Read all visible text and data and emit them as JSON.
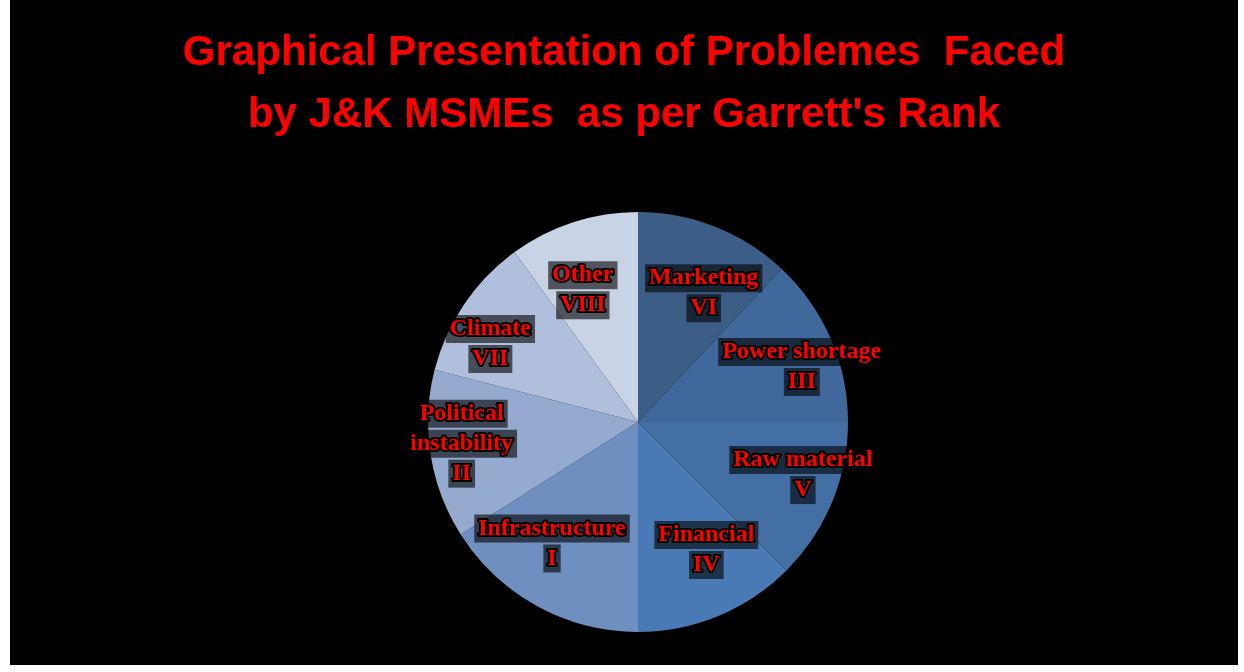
{
  "chart_data": {
    "type": "pie",
    "title": "Graphical Presentation of Problemes  Faced\nby J&K MSMEs  as per Garrett's Rank",
    "categories": [
      "Marketing\nVI",
      "Power shortage\nIII",
      "Raw material\nV",
      "Financial\nIV",
      "Infrastructure\nI",
      "Political\ninstability\nII",
      "Climate\nVII",
      "Other\nVIII"
    ],
    "values": [
      12,
      13,
      12.5,
      12.5,
      16,
      13,
      11,
      10
    ],
    "colors": [
      "#3b5d86",
      "#40689a",
      "#436fa5",
      "#4a7ab5",
      "#6f8fc0",
      "#94aacf",
      "#b0c0dc",
      "#c9d3e6"
    ],
    "legend": false
  }
}
